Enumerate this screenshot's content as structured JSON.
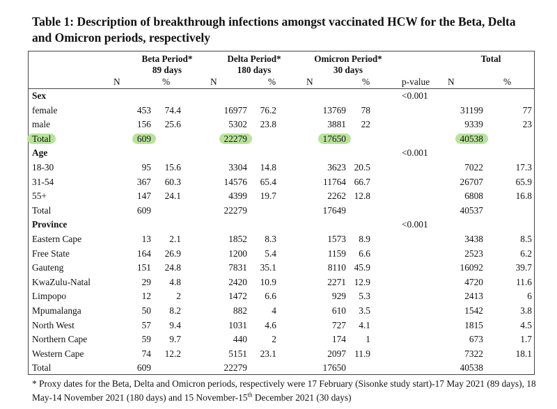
{
  "title": "Table 1: Description of breakthrough infections amongst vaccinated HCW for the Beta, Delta and Omicron periods, respectively",
  "headers": {
    "beta_line1": "Beta Period*",
    "beta_line2": "89 days",
    "delta_line1": "Delta Period*",
    "delta_line2": "180 days",
    "omicron_line1": "Omicron Period*",
    "omicron_line2": "30 days",
    "total": "Total",
    "n": "N",
    "pct": "%",
    "pvalue": "p-value"
  },
  "rows": [
    {
      "kind": "section",
      "label": "Sex",
      "p": "<0.001"
    },
    {
      "kind": "data",
      "label": "female",
      "vals": [
        "453",
        "74.4",
        "16977",
        "76.2",
        "13769",
        "78",
        "31199",
        "77"
      ]
    },
    {
      "kind": "data",
      "label": "male",
      "vals": [
        "156",
        "25.6",
        "5302",
        "23.8",
        "3881",
        "22",
        "9339",
        "23"
      ]
    },
    {
      "kind": "total-hl",
      "label": "Total",
      "vals": [
        "609",
        "",
        "22279",
        "",
        "17650",
        "",
        "40538",
        ""
      ]
    },
    {
      "kind": "section",
      "label": "Age",
      "p": "<0.001"
    },
    {
      "kind": "data",
      "label": "18-30",
      "vals": [
        "95",
        "15.6",
        "3304",
        "14.8",
        "3623",
        "20.5",
        "7022",
        "17.3"
      ]
    },
    {
      "kind": "data",
      "label": "31-54",
      "vals": [
        "367",
        "60.3",
        "14576",
        "65.4",
        "11764",
        "66.7",
        "26707",
        "65.9"
      ]
    },
    {
      "kind": "data",
      "label": "55+",
      "vals": [
        "147",
        "24.1",
        "4399",
        "19.7",
        "2262",
        "12.8",
        "6808",
        "16.8"
      ]
    },
    {
      "kind": "data",
      "label": "Total",
      "vals": [
        "609",
        "",
        "22279",
        "",
        "17649",
        "",
        "40537",
        ""
      ]
    },
    {
      "kind": "section",
      "label": "Province",
      "p": "<0.001"
    },
    {
      "kind": "data",
      "label": "Eastern Cape",
      "vals": [
        "13",
        "2.1",
        "1852",
        "8.3",
        "1573",
        "8.9",
        "3438",
        "8.5"
      ]
    },
    {
      "kind": "data",
      "label": "Free State",
      "vals": [
        "164",
        "26.9",
        "1200",
        "5.4",
        "1159",
        "6.6",
        "2523",
        "6.2"
      ]
    },
    {
      "kind": "data",
      "label": "Gauteng",
      "vals": [
        "151",
        "24.8",
        "7831",
        "35.1",
        "8110",
        "45.9",
        "16092",
        "39.7"
      ]
    },
    {
      "kind": "data",
      "label": "KwaZulu-Natal",
      "vals": [
        "29",
        "4.8",
        "2420",
        "10.9",
        "2271",
        "12.9",
        "4720",
        "11.6"
      ]
    },
    {
      "kind": "data",
      "label": "Limpopo",
      "vals": [
        "12",
        "2",
        "1472",
        "6.6",
        "929",
        "5.3",
        "2413",
        "6"
      ]
    },
    {
      "kind": "data",
      "label": "Mpumalanga",
      "vals": [
        "50",
        "8.2",
        "882",
        "4",
        "610",
        "3.5",
        "1542",
        "3.8"
      ]
    },
    {
      "kind": "data",
      "label": "North West",
      "vals": [
        "57",
        "9.4",
        "1031",
        "4.6",
        "727",
        "4.1",
        "1815",
        "4.5"
      ]
    },
    {
      "kind": "data",
      "label": "Northern Cape",
      "vals": [
        "59",
        "9.7",
        "440",
        "2",
        "174",
        "1",
        "673",
        "1.7"
      ]
    },
    {
      "kind": "data",
      "label": "Western Cape",
      "vals": [
        "74",
        "12.2",
        "5151",
        "23.1",
        "2097",
        "11.9",
        "7322",
        "18.1"
      ]
    },
    {
      "kind": "data",
      "label": "Total",
      "vals": [
        "609",
        "",
        "22279",
        "",
        "17650",
        "",
        "40538",
        ""
      ]
    }
  ],
  "footnote": {
    "part1": "* Proxy dates for the Beta, Delta and Omicron periods, respectively were 17 February  (Sisonke study start)-17 May 2021 (89 days), 18 May-14 November 2021 (180 days) and 15 November-15",
    "sup": "th",
    "part2": " December 2021 (30 days)"
  }
}
